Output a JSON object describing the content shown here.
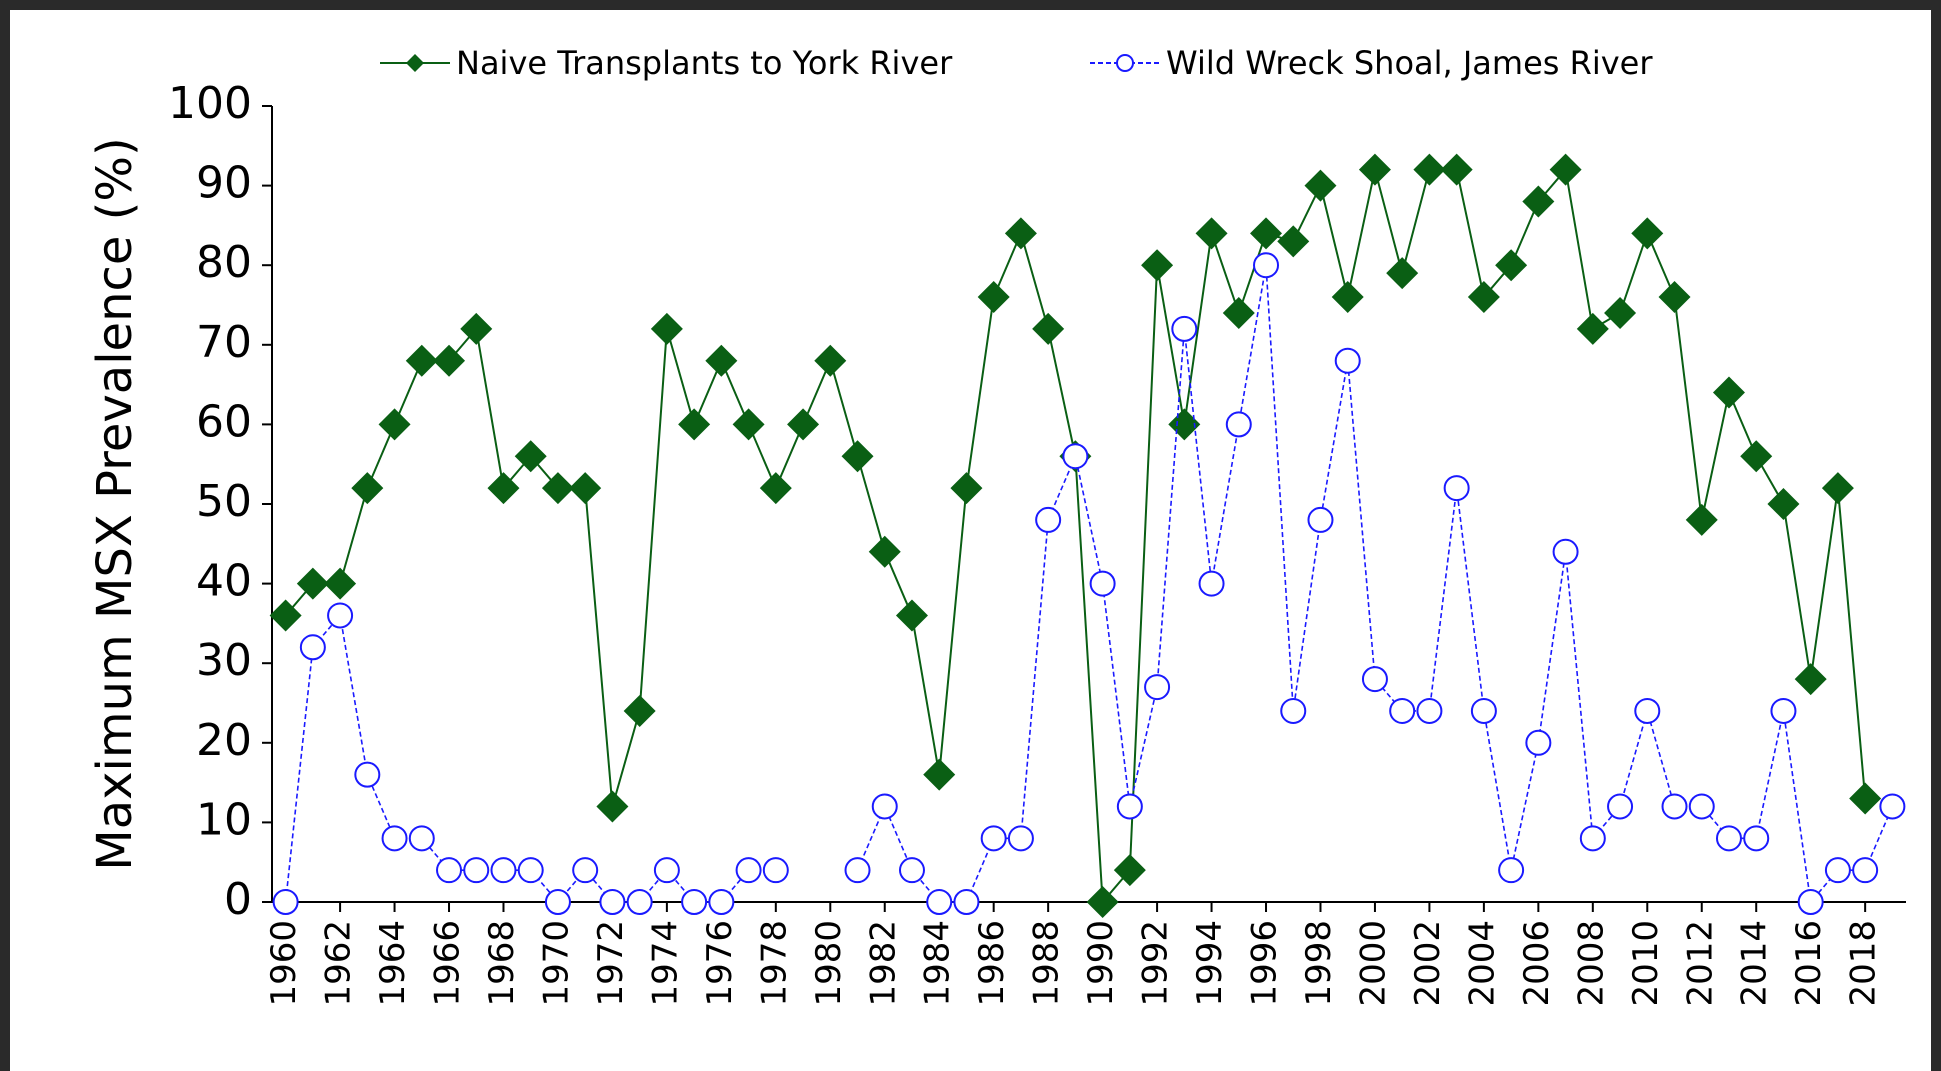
{
  "chart_data": {
    "type": "line",
    "y_label": "Maximum MSX Prevalence (%)",
    "x": [
      1960,
      1961,
      1962,
      1963,
      1964,
      1965,
      1966,
      1967,
      1968,
      1969,
      1970,
      1971,
      1972,
      1973,
      1974,
      1975,
      1976,
      1977,
      1978,
      1979,
      1980,
      1981,
      1982,
      1983,
      1984,
      1985,
      1986,
      1987,
      1988,
      1989,
      1990,
      1991,
      1992,
      1993,
      1994,
      1995,
      1996,
      1997,
      1998,
      1999,
      2000,
      2001,
      2002,
      2003,
      2004,
      2005,
      2006,
      2007,
      2008,
      2009,
      2010,
      2011,
      2012,
      2013,
      2014,
      2015,
      2016,
      2017,
      2018,
      2019
    ],
    "series": [
      {
        "name": "Naive Transplants to York River",
        "color": "#0a5f14",
        "marker": "diamond",
        "line": "solid",
        "values": [
          36,
          40,
          40,
          52,
          60,
          68,
          68,
          72,
          52,
          56,
          52,
          52,
          12,
          24,
          72,
          60,
          68,
          60,
          52,
          60,
          68,
          56,
          44,
          36,
          16,
          52,
          76,
          84,
          72,
          56,
          0,
          4,
          80,
          60,
          84,
          74,
          84,
          83,
          90,
          76,
          92,
          79,
          92,
          92,
          76,
          80,
          88,
          92,
          72,
          74,
          84,
          76,
          48,
          64,
          56,
          50,
          28,
          52,
          13,
          null
        ]
      },
      {
        "name": "Wild Wreck Shoal, James River",
        "color": "#1a1aff",
        "marker": "circle",
        "line": "dashed",
        "values": [
          0,
          32,
          36,
          16,
          8,
          8,
          4,
          4,
          4,
          4,
          0,
          4,
          0,
          0,
          4,
          0,
          0,
          4,
          4,
          null,
          null,
          4,
          12,
          4,
          0,
          0,
          8,
          8,
          48,
          56,
          40,
          12,
          27,
          72,
          40,
          60,
          80,
          24,
          48,
          68,
          28,
          24,
          24,
          52,
          24,
          4,
          20,
          44,
          8,
          12,
          24,
          12,
          12,
          8,
          8,
          24,
          0,
          4,
          4,
          12
        ]
      }
    ],
    "xlim": [
      1959.5,
      2019.5
    ],
    "xticks": [
      1960,
      1962,
      1964,
      1966,
      1968,
      1970,
      1972,
      1974,
      1976,
      1978,
      1980,
      1982,
      1984,
      1986,
      1988,
      1990,
      1992,
      1994,
      1996,
      1998,
      2000,
      2002,
      2004,
      2006,
      2008,
      2010,
      2012,
      2014,
      2016,
      2018
    ],
    "ylim": [
      0,
      100
    ],
    "yticks": [
      0,
      10,
      20,
      30,
      40,
      50,
      60,
      70,
      80,
      90,
      100
    ],
    "legend": "top"
  }
}
